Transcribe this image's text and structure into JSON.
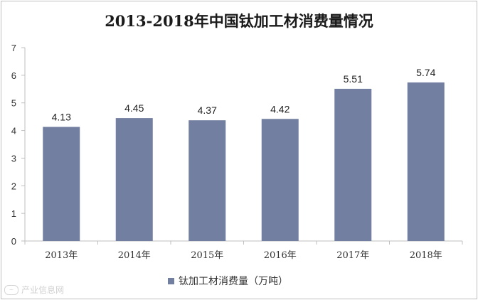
{
  "chart_data": {
    "type": "bar",
    "title": "2013-2018年中国钛加工材消费量情况",
    "categories": [
      "2013年",
      "2014年",
      "2015年",
      "2016年",
      "2017年",
      "2018年"
    ],
    "series": [
      {
        "name": "钛加工材消费量（万吨）",
        "values": [
          4.13,
          4.45,
          4.37,
          4.42,
          5.51,
          5.74
        ]
      }
    ],
    "data_labels": [
      "4.13",
      "4.45",
      "4.37",
      "4.42",
      "5.51",
      "5.74"
    ],
    "y_ticks": [
      "0",
      "1",
      "2",
      "3",
      "4",
      "5",
      "6",
      "7"
    ],
    "ylim": [
      0,
      7
    ],
    "grid": false,
    "legend_position": "bottom",
    "colors": {
      "bar": "#727fa0",
      "axis": "#bfbfbf"
    }
  },
  "watermark": {
    "text": "产业信息网"
  }
}
